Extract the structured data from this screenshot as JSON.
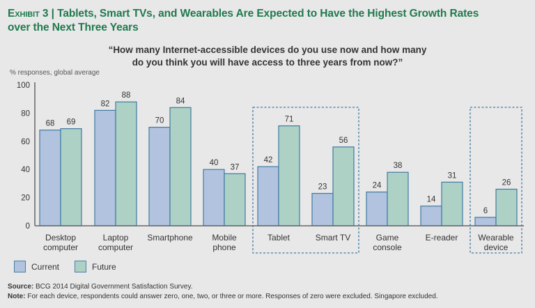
{
  "header": {
    "exhibit": "Exhibit 3",
    "separator": "|",
    "title_line1": "Tablets, Smart TVs, and Wearables Are Expected to Have the Highest Growth Rates",
    "title_line2": "over the Next Three Years"
  },
  "question": {
    "line1": "“How many Internet-accessible devices do you use now and how many",
    "line2": "do you think you will have access to three years from now?”"
  },
  "chart_data": {
    "type": "bar",
    "title": "How many Internet-accessible devices do you use now and how many do you think you will have access to three years from now?",
    "ylabel": "% responses, global average",
    "xlabel": "",
    "ylim": [
      0,
      100
    ],
    "yticks": [
      0,
      20,
      40,
      60,
      80,
      100
    ],
    "grid": false,
    "categories": [
      [
        "Desktop",
        "computer"
      ],
      [
        "Laptop",
        "computer"
      ],
      [
        "Smartphone"
      ],
      [
        "Mobile",
        "phone"
      ],
      [
        "Tablet"
      ],
      [
        "Smart TV"
      ],
      [
        "Game",
        "console"
      ],
      [
        "E-reader"
      ],
      [
        "Wearable",
        "device"
      ]
    ],
    "series": [
      {
        "name": "Current",
        "color": "#b1c3de",
        "values": [
          68,
          82,
          70,
          40,
          42,
          23,
          24,
          14,
          6
        ]
      },
      {
        "name": "Future",
        "color": "#aed1c6",
        "values": [
          69,
          88,
          84,
          37,
          71,
          56,
          38,
          31,
          26
        ]
      }
    ],
    "bar_edge_color": "#3f7aa0",
    "highlight_groups": [
      {
        "categories": [
          "Tablet",
          "Smart TV"
        ],
        "style": "dashed-box"
      },
      {
        "categories": [
          "Wearable device"
        ],
        "style": "dashed-box"
      }
    ],
    "legend": {
      "position": "bottom-left",
      "entries": [
        "Current",
        "Future"
      ]
    }
  },
  "footer": {
    "source_label": "Source:",
    "source_text": " BCG 2014 Digital Government Satisfaction Survey.",
    "note_label": "Note:",
    "note_text": " For each device, respondents could answer zero, one, two, or three or more. Responses of zero were excluded. Singapore excluded."
  }
}
